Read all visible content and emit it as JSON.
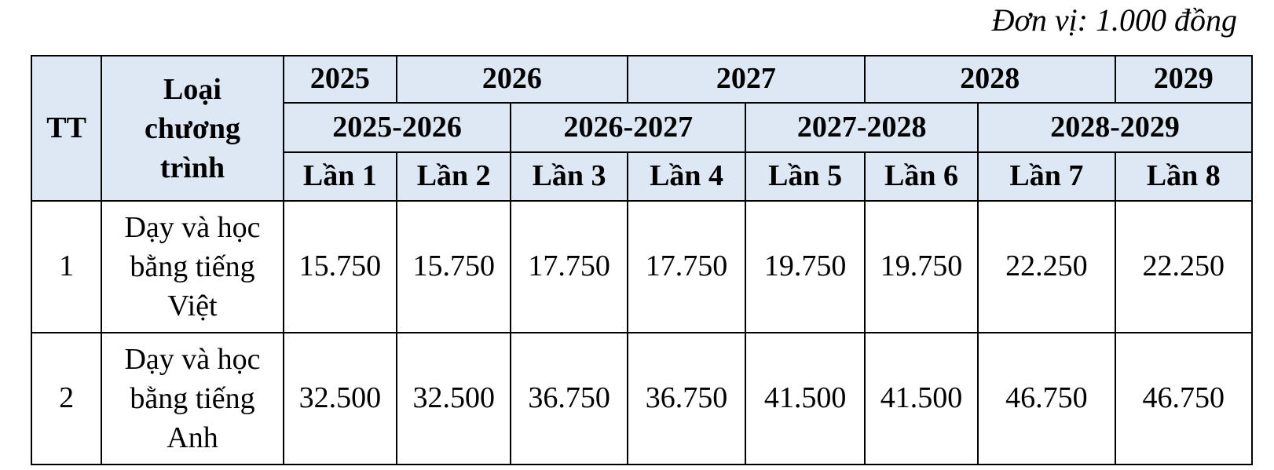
{
  "unit_label": "Đơn vị: 1.000 đồng",
  "header": {
    "tt": "TT",
    "program": [
      "Loại",
      "chương",
      "trình"
    ],
    "years": [
      "2025",
      "2026",
      "2027",
      "2028",
      "2029"
    ],
    "school_years": [
      "2025-2026",
      "2026-2027",
      "2027-2028",
      "2028-2029"
    ],
    "terms": [
      "Lần 1",
      "Lần 2",
      "Lần 3",
      "Lần 4",
      "Lần 5",
      "Lần 6",
      "Lần 7",
      "Lần 8"
    ]
  },
  "rows": [
    {
      "tt": "1",
      "program": [
        "Dạy và học",
        "bằng tiếng",
        "Việt"
      ],
      "fees": [
        "15.750",
        "15.750",
        "17.750",
        "17.750",
        "19.750",
        "19.750",
        "22.250",
        "22.250"
      ]
    },
    {
      "tt": "2",
      "program": [
        "Dạy và học",
        "bằng tiếng",
        "Anh"
      ],
      "fees": [
        "32.500",
        "32.500",
        "36.750",
        "36.750",
        "41.500",
        "41.500",
        "46.750",
        "46.750"
      ]
    }
  ]
}
